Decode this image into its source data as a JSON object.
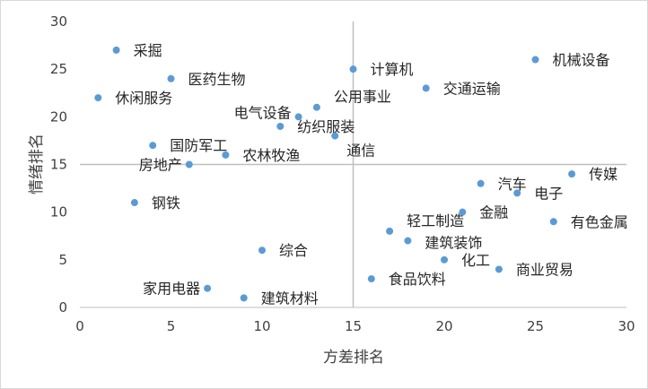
{
  "chart_data": {
    "type": "scatter",
    "title": "",
    "xlabel": "方差排名",
    "ylabel": "情绪排名",
    "xlim": [
      0,
      30
    ],
    "ylim": [
      0,
      30
    ],
    "xticks": [
      "0",
      "5",
      "10",
      "15",
      "20",
      "25",
      "30"
    ],
    "yticks": [
      "0",
      "5",
      "10",
      "15",
      "20",
      "25",
      "30"
    ],
    "reference_lines": {
      "x": 15,
      "y": 15
    },
    "grid": false,
    "point_color": "#5b9bd5",
    "points": [
      {
        "label": "采掘",
        "x": 2,
        "y": 27
      },
      {
        "label": "医药生物",
        "x": 5,
        "y": 24
      },
      {
        "label": "休闲服务",
        "x": 1,
        "y": 22
      },
      {
        "label": "计算机",
        "x": 15,
        "y": 25
      },
      {
        "label": "机械设备",
        "x": 25,
        "y": 26
      },
      {
        "label": "交通运输",
        "x": 19,
        "y": 23
      },
      {
        "label": "公用事业",
        "x": 13,
        "y": 21
      },
      {
        "label": "电气设备",
        "x": 12,
        "y": 20
      },
      {
        "label": "纺织服装",
        "x": 11,
        "y": 19
      },
      {
        "label": "通信",
        "x": 14,
        "y": 18
      },
      {
        "label": "国防军工",
        "x": 4,
        "y": 17
      },
      {
        "label": "农林牧渔",
        "x": 8,
        "y": 16
      },
      {
        "label": "房地产",
        "x": 6,
        "y": 15
      },
      {
        "label": "传媒",
        "x": 27,
        "y": 14
      },
      {
        "label": "汽车",
        "x": 22,
        "y": 13
      },
      {
        "label": "电子",
        "x": 24,
        "y": 12
      },
      {
        "label": "钢铁",
        "x": 3,
        "y": 11
      },
      {
        "label": "金融",
        "x": 21,
        "y": 10
      },
      {
        "label": "有色金属",
        "x": 26,
        "y": 9
      },
      {
        "label": "轻工制造",
        "x": 17,
        "y": 8
      },
      {
        "label": "建筑装饰",
        "x": 18,
        "y": 7
      },
      {
        "label": "综合",
        "x": 10,
        "y": 6
      },
      {
        "label": "化工",
        "x": 20,
        "y": 5
      },
      {
        "label": "商业贸易",
        "x": 23,
        "y": 4
      },
      {
        "label": "食品饮料",
        "x": 16,
        "y": 3
      },
      {
        "label": "家用电器",
        "x": 7,
        "y": 2
      },
      {
        "label": "建筑材料",
        "x": 9,
        "y": 1
      }
    ]
  }
}
